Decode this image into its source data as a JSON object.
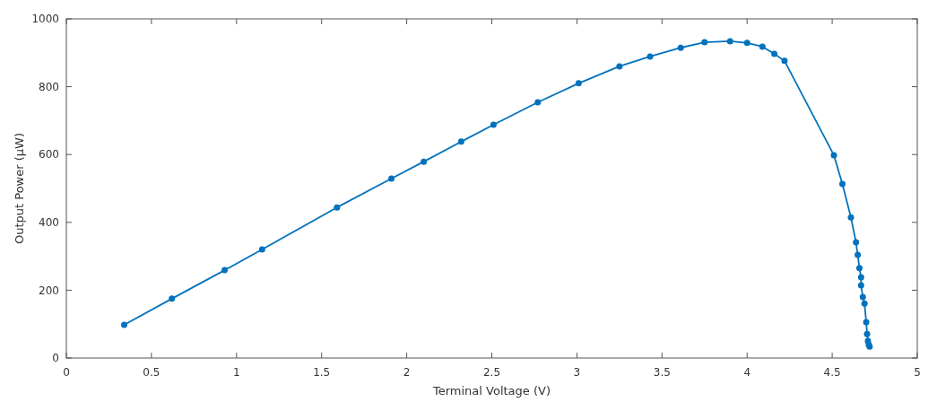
{
  "chart_data": {
    "type": "line",
    "xlabel": "Terminal Voltage (V)",
    "ylabel": "Output Power (μW)",
    "xlim": [
      0,
      5
    ],
    "xticks": [
      0,
      0.5,
      1,
      1.5,
      2,
      2.5,
      3,
      3.5,
      4,
      4.5,
      5
    ],
    "ylim": [
      0,
      1000
    ],
    "yticks": [
      0,
      200,
      400,
      600,
      800,
      1000
    ],
    "grid": false,
    "marker": "circle",
    "line_style": "solid",
    "series": [
      {
        "color": "#0072bd",
        "x": [
          0.34,
          0.62,
          0.93,
          1.15,
          1.59,
          1.91,
          2.1,
          2.32,
          2.51,
          2.77,
          3.01,
          3.25,
          3.43,
          3.61,
          3.75,
          3.9,
          4,
          4.09,
          4.16,
          4.22,
          4.51,
          4.56,
          4.61,
          4.64,
          4.65,
          4.66,
          4.67,
          4.67,
          4.68,
          4.69,
          4.7,
          4.705,
          4.71,
          4.715,
          4.72
        ],
        "values": [
          98,
          175,
          259,
          320,
          444,
          529,
          579,
          638,
          688,
          754,
          810,
          860,
          889,
          915,
          931,
          934,
          929,
          918,
          897,
          876,
          598,
          513,
          415,
          341,
          304,
          265,
          238,
          214,
          180,
          161,
          106,
          71,
          50,
          40,
          34
        ]
      }
    ]
  }
}
